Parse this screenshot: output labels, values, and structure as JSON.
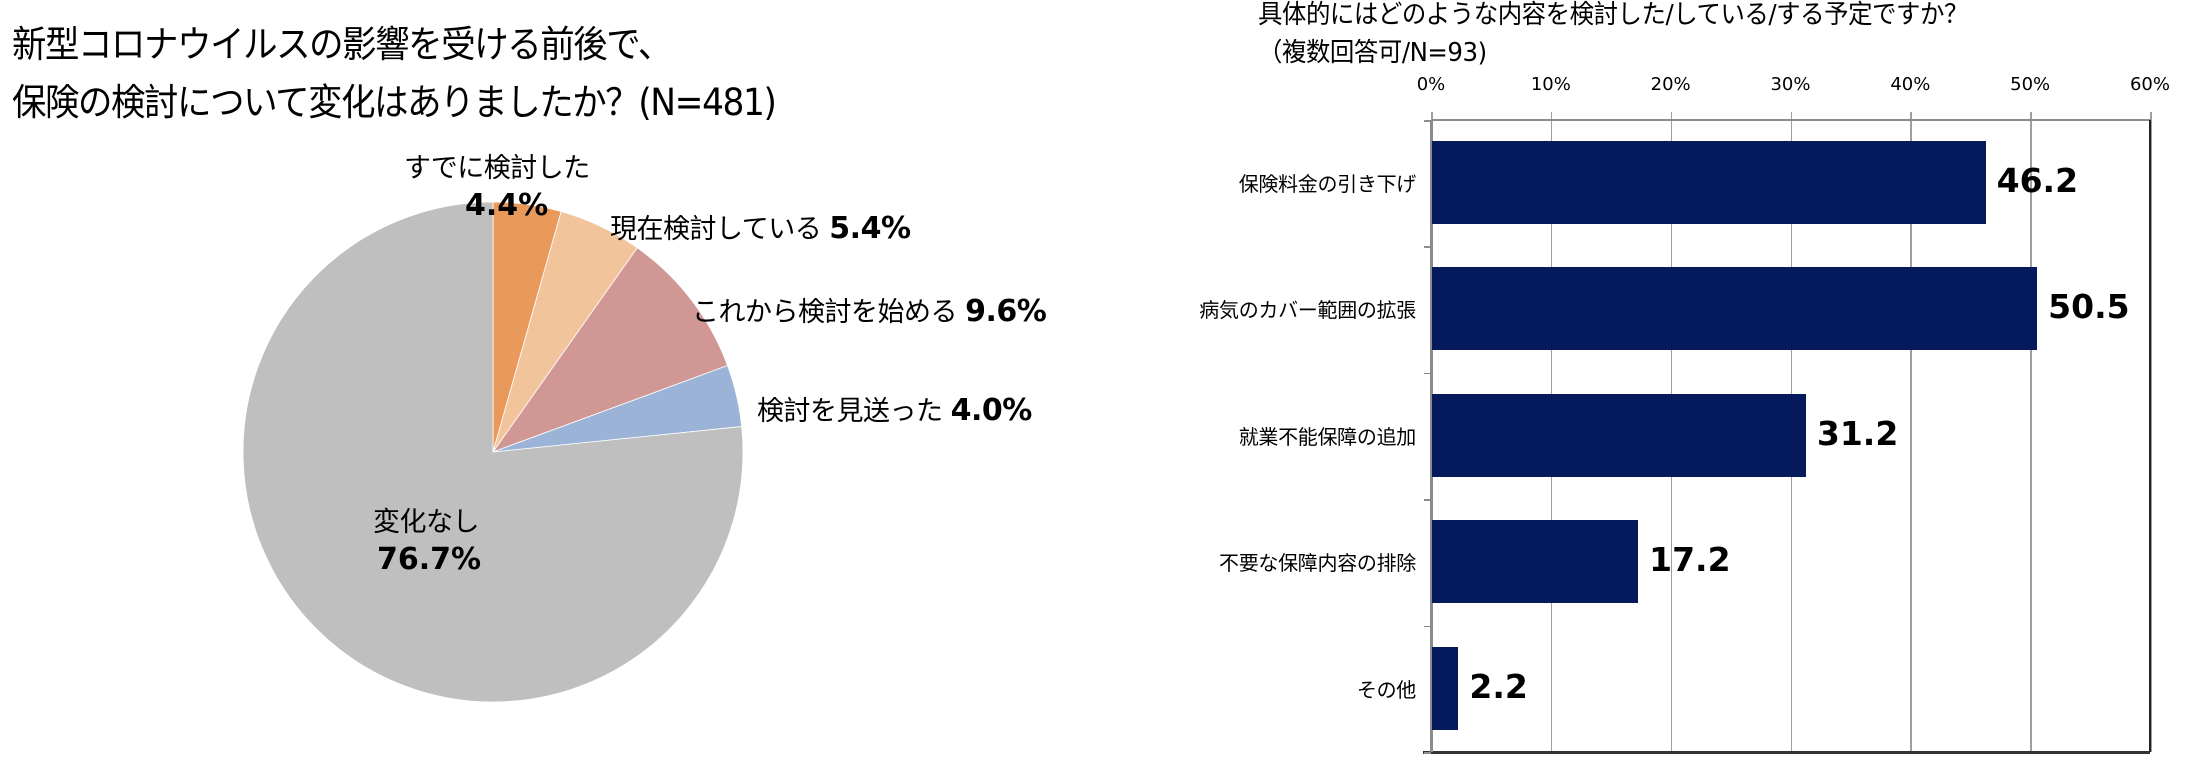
{
  "left_panel": {
    "title_line1": "新型コロナウイルスの影響を受ける前後で、",
    "title_line2": "保険の検討について変化はありましたか？(N=481)"
  },
  "right_panel": {
    "title_line1": "具体的にはどのような内容を検討した/している/する予定ですか？",
    "title_line2": "（複数回答可/N=93)"
  },
  "colors": {
    "already": "#E99A5A",
    "currently": "#F2C49B",
    "will_start": "#D09794",
    "postponed": "#9BB3D6",
    "no_change": "#BFBFBF",
    "bar": "#041A5D"
  },
  "chart_data": [
    {
      "type": "pie",
      "title": "新型コロナウイルスの影響を受ける前後で、保険の検討について変化はありましたか？(N=481)",
      "labels": [
        "すでに検討した",
        "現在検討している",
        "これから検討を始める",
        "検討を見送った",
        "変化なし"
      ],
      "values": [
        4.4,
        5.4,
        9.6,
        4.0,
        76.7
      ],
      "value_labels": [
        "4.4%",
        "5.4%",
        "9.6%",
        "4.0%",
        "76.7%"
      ],
      "colors": [
        "#E99A5A",
        "#F2C49B",
        "#D09794",
        "#9BB3D6",
        "#BFBFBF"
      ],
      "start_angle": "12 o'clock, clockwise",
      "legend": "none (data labels)"
    },
    {
      "type": "bar",
      "orientation": "horizontal",
      "title": "具体的にはどのような内容を検討した/している/する予定ですか？（複数回答可/N=93)",
      "categories": [
        "保険料金の引き下げ",
        "病気のカバー範囲の拡張",
        "就業不能保障の追加",
        "不要な保障内容の排除",
        "その他"
      ],
      "values": [
        46.2,
        50.5,
        31.2,
        17.2,
        2.2
      ],
      "value_labels": [
        "46.2",
        "50.5",
        "31.2",
        "17.2",
        "2.2"
      ],
      "xlabel": "",
      "ylabel": "",
      "xlim": [
        0,
        60
      ],
      "x_ticks": [
        "0%",
        "10%",
        "20%",
        "30%",
        "40%",
        "50%",
        "60%"
      ],
      "x_axis_position": "top",
      "grid": true,
      "color": "#041A5D"
    }
  ]
}
